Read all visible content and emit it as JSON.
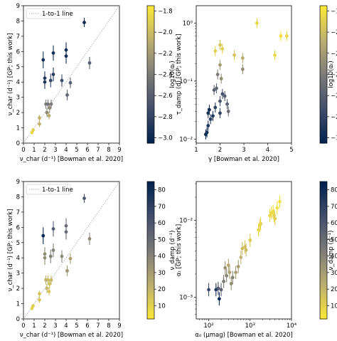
{
  "chart_data": [
    {
      "type": "scatter",
      "xlabel": "ν_char (d⁻¹) [Bowman et al. 2020]",
      "ylabel": "ν_char (d⁻¹) [GP; this work]",
      "xlim": [
        0,
        9
      ],
      "ylim": [
        0,
        9
      ],
      "xticks": [
        "0",
        "1",
        "2",
        "3",
        "4",
        "5",
        "6",
        "7",
        "8",
        "9"
      ],
      "yticks": [
        "0",
        "1",
        "2",
        "3",
        "4",
        "5",
        "6",
        "7",
        "8",
        "9"
      ],
      "legend": [
        "1-to-1 line"
      ],
      "legend_position": "top-left",
      "colorbar": {
        "label": "log10(αₜ)",
        "ticks": [
          "−1.8",
          "−2.0",
          "−2.2",
          "−2.4",
          "−2.6",
          "−2.8",
          "−3.0"
        ],
        "tick_values": [
          -1.8,
          -2.0,
          -2.2,
          -2.4,
          -2.6,
          -2.8,
          -3.0
        ],
        "range": [
          -3.05,
          -1.75
        ],
        "colormap": "cividis"
      },
      "points": [
        {
          "x": 0.8,
          "y": 0.7,
          "yerr": 0.15,
          "c": -1.85
        },
        {
          "x": 0.9,
          "y": 0.85,
          "yerr": 0.15,
          "c": -1.88
        },
        {
          "x": 1.5,
          "y": 1.25,
          "yerr": 0.2,
          "c": -2.05
        },
        {
          "x": 1.5,
          "y": 1.65,
          "yerr": 0.2,
          "c": -2.05
        },
        {
          "x": 1.85,
          "y": 5.45,
          "yerr": 0.55,
          "c": -2.95
        },
        {
          "x": 2.0,
          "y": 4.25,
          "yerr": 0.45,
          "c": -2.85
        },
        {
          "x": 2.0,
          "y": 4.0,
          "yerr": 0.45,
          "c": -2.9
        },
        {
          "x": 2.1,
          "y": 2.55,
          "yerr": 0.3,
          "c": -2.4
        },
        {
          "x": 2.2,
          "y": 2.0,
          "yerr": 0.3,
          "c": -2.3
        },
        {
          "x": 2.3,
          "y": 2.55,
          "yerr": 0.3,
          "c": -2.45
        },
        {
          "x": 2.4,
          "y": 1.8,
          "yerr": 0.25,
          "c": -2.1
        },
        {
          "x": 2.45,
          "y": 2.3,
          "yerr": 0.3,
          "c": -2.3
        },
        {
          "x": 2.55,
          "y": 4.1,
          "yerr": 0.45,
          "c": -2.8
        },
        {
          "x": 2.6,
          "y": 2.55,
          "yerr": 0.3,
          "c": -2.4
        },
        {
          "x": 2.8,
          "y": 5.9,
          "yerr": 0.5,
          "c": -2.95
        },
        {
          "x": 2.8,
          "y": 4.5,
          "yerr": 0.45,
          "c": -2.85
        },
        {
          "x": 3.6,
          "y": 4.1,
          "yerr": 0.4,
          "c": -2.75
        },
        {
          "x": 4.0,
          "y": 5.7,
          "yerr": 0.5,
          "c": -2.95
        },
        {
          "x": 4.0,
          "y": 6.1,
          "yerr": 0.5,
          "c": -2.95
        },
        {
          "x": 4.1,
          "y": 3.15,
          "yerr": 0.35,
          "c": -2.55
        },
        {
          "x": 4.4,
          "y": 3.95,
          "yerr": 0.35,
          "c": -2.6
        },
        {
          "x": 5.7,
          "y": 7.9,
          "yerr": 0.3,
          "c": -3.0
        },
        {
          "x": 6.2,
          "y": 5.25,
          "yerr": 0.4,
          "c": -2.6
        }
      ]
    },
    {
      "type": "scatter",
      "xlabel": "γ [Bowman et al. 2020]",
      "ylabel": "τ_damp (d) [GP; this work]",
      "xlim": [
        1,
        5
      ],
      "ylim": [
        0.0085,
        2.0
      ],
      "yscale": "log",
      "xticks": [
        "1",
        "2",
        "3",
        "4",
        "5"
      ],
      "yticks": [
        "10⁻²",
        "10⁻¹",
        "10⁰"
      ],
      "colorbar": {
        "label": "log10(αₜ)",
        "ticks": [
          "−1.8",
          "−2.0",
          "−2.2",
          "−2.4",
          "−2.6",
          "−2.8",
          "−3.0"
        ],
        "tick_values": [
          -1.8,
          -2.0,
          -2.2,
          -2.4,
          -2.6,
          -2.8,
          -3.0
        ],
        "range": [
          -3.05,
          -1.75
        ],
        "colormap": "cividis"
      },
      "points": [
        {
          "x": 1.4,
          "y": 0.012,
          "c": -3.0
        },
        {
          "x": 1.45,
          "y": 0.013,
          "c": -2.95
        },
        {
          "x": 1.5,
          "y": 0.017,
          "c": -2.9
        },
        {
          "x": 1.5,
          "y": 0.028,
          "c": -2.9
        },
        {
          "x": 1.55,
          "y": 0.032,
          "c": -2.95
        },
        {
          "x": 1.6,
          "y": 0.022,
          "c": -2.85
        },
        {
          "x": 1.7,
          "y": 0.025,
          "c": -2.9
        },
        {
          "x": 1.8,
          "y": 0.035,
          "c": -2.8
        },
        {
          "x": 1.75,
          "y": 0.07,
          "c": -2.6
        },
        {
          "x": 1.85,
          "y": 0.075,
          "c": -2.55
        },
        {
          "x": 2.0,
          "y": 0.045,
          "c": -2.7
        },
        {
          "x": 2.0,
          "y": 0.028,
          "c": -2.8
        },
        {
          "x": 2.1,
          "y": 0.06,
          "c": -2.7
        },
        {
          "x": 2.2,
          "y": 0.055,
          "c": -2.6
        },
        {
          "x": 2.3,
          "y": 0.04,
          "c": -2.6
        },
        {
          "x": 2.35,
          "y": 0.03,
          "c": -2.5
        },
        {
          "x": 1.9,
          "y": 0.13,
          "c": -2.4
        },
        {
          "x": 2.05,
          "y": 0.11,
          "c": -2.3
        },
        {
          "x": 2.0,
          "y": 0.19,
          "c": -2.2
        },
        {
          "x": 1.8,
          "y": 0.33,
          "c": -1.9
        },
        {
          "x": 2.0,
          "y": 0.42,
          "c": -1.95
        },
        {
          "x": 2.1,
          "y": 0.36,
          "c": -1.9
        },
        {
          "x": 2.6,
          "y": 0.28,
          "c": -1.95
        },
        {
          "x": 2.95,
          "y": 0.25,
          "c": -2.1
        },
        {
          "x": 2.95,
          "y": 0.16,
          "c": -2.3
        },
        {
          "x": 3.55,
          "y": 1.0,
          "c": -1.85
        },
        {
          "x": 4.3,
          "y": 0.28,
          "c": -1.85
        },
        {
          "x": 4.55,
          "y": 0.6,
          "c": -1.8
        },
        {
          "x": 4.8,
          "y": 0.6,
          "c": -1.85
        }
      ]
    },
    {
      "type": "scatter",
      "xlabel": "ν_char (d⁻¹) [Bowman et al. 2020]",
      "ylabel": "ν_char (d⁻¹) [GP; this work]",
      "xlim": [
        0,
        9
      ],
      "ylim": [
        0,
        9
      ],
      "xticks": [
        "0",
        "1",
        "2",
        "3",
        "4",
        "5",
        "6",
        "7",
        "8",
        "9"
      ],
      "yticks": [
        "0",
        "1",
        "2",
        "3",
        "4",
        "5",
        "6",
        "7",
        "8",
        "9"
      ],
      "legend": [
        "1-to-1 line"
      ],
      "legend_position": "top-left",
      "colorbar": {
        "label": "ν_damp (d⁻¹)",
        "ticks": [
          "10",
          "20",
          "30",
          "40",
          "50",
          "60",
          "70",
          "80"
        ],
        "tick_values": [
          10,
          20,
          30,
          40,
          50,
          60,
          70,
          80
        ],
        "range": [
          2,
          85
        ],
        "colormap": "cividis_r"
      },
      "points": [
        {
          "x": 0.8,
          "y": 0.7,
          "yerr": 0.15,
          "c": 10
        },
        {
          "x": 0.9,
          "y": 0.85,
          "yerr": 0.15,
          "c": 12
        },
        {
          "x": 1.5,
          "y": 1.25,
          "yerr": 0.2,
          "c": 15
        },
        {
          "x": 1.5,
          "y": 1.65,
          "yerr": 0.2,
          "c": 15
        },
        {
          "x": 1.85,
          "y": 5.45,
          "yerr": 0.55,
          "c": 82
        },
        {
          "x": 2.0,
          "y": 4.25,
          "yerr": 0.45,
          "c": 38
        },
        {
          "x": 2.0,
          "y": 4.0,
          "yerr": 0.45,
          "c": 36
        },
        {
          "x": 2.1,
          "y": 2.55,
          "yerr": 0.3,
          "c": 22
        },
        {
          "x": 2.2,
          "y": 2.0,
          "yerr": 0.3,
          "c": 20
        },
        {
          "x": 2.3,
          "y": 2.55,
          "yerr": 0.3,
          "c": 18
        },
        {
          "x": 2.4,
          "y": 1.8,
          "yerr": 0.25,
          "c": 14
        },
        {
          "x": 2.45,
          "y": 2.3,
          "yerr": 0.3,
          "c": 16
        },
        {
          "x": 2.55,
          "y": 4.1,
          "yerr": 0.45,
          "c": 42
        },
        {
          "x": 2.6,
          "y": 2.55,
          "yerr": 0.3,
          "c": 20
        },
        {
          "x": 2.8,
          "y": 5.9,
          "yerr": 0.5,
          "c": 58
        },
        {
          "x": 2.8,
          "y": 4.5,
          "yerr": 0.45,
          "c": 40
        },
        {
          "x": 3.6,
          "y": 4.1,
          "yerr": 0.4,
          "c": 38
        },
        {
          "x": 4.0,
          "y": 5.7,
          "yerr": 0.5,
          "c": 52
        },
        {
          "x": 4.0,
          "y": 6.1,
          "yerr": 0.5,
          "c": 50
        },
        {
          "x": 4.1,
          "y": 3.15,
          "yerr": 0.35,
          "c": 32
        },
        {
          "x": 4.4,
          "y": 3.95,
          "yerr": 0.35,
          "c": 28
        },
        {
          "x": 5.7,
          "y": 7.9,
          "yerr": 0.3,
          "c": 60
        },
        {
          "x": 6.2,
          "y": 5.25,
          "yerr": 0.4,
          "c": 38
        }
      ]
    },
    {
      "type": "scatter",
      "xlabel": "α₀ (µmag) [Bowman et al. 2020]",
      "ylabel": "αₜ [GP; this work]",
      "xlim": [
        50,
        10000
      ],
      "ylim": [
        0.00052,
        0.032
      ],
      "xscale": "log",
      "yscale": "log",
      "xticks": [
        "10²",
        "10³",
        "10⁴"
      ],
      "yticks": [
        "10⁻³",
        "10⁻²"
      ],
      "colorbar": {
        "label": "ν_damp (d⁻¹)",
        "ticks": [
          "10",
          "20",
          "30",
          "40",
          "50",
          "60",
          "70",
          "80"
        ],
        "tick_values": [
          10,
          20,
          30,
          40,
          50,
          60,
          70,
          80
        ],
        "range": [
          2,
          85
        ],
        "colormap": "cividis_r"
      },
      "points": [
        {
          "x": 100,
          "y": 0.00125,
          "c": 65
        },
        {
          "x": 150,
          "y": 0.00125,
          "c": 75
        },
        {
          "x": 170,
          "y": 0.0013,
          "c": 60
        },
        {
          "x": 180,
          "y": 0.00095,
          "c": 82
        },
        {
          "x": 200,
          "y": 0.00125,
          "c": 55
        },
        {
          "x": 230,
          "y": 0.0016,
          "c": 45
        },
        {
          "x": 250,
          "y": 0.0024,
          "c": 35
        },
        {
          "x": 270,
          "y": 0.0019,
          "c": 40
        },
        {
          "x": 300,
          "y": 0.0026,
          "c": 25
        },
        {
          "x": 320,
          "y": 0.0021,
          "c": 28
        },
        {
          "x": 350,
          "y": 0.0015,
          "c": 35
        },
        {
          "x": 380,
          "y": 0.0018,
          "c": 40
        },
        {
          "x": 450,
          "y": 0.0021,
          "c": 30
        },
        {
          "x": 520,
          "y": 0.0025,
          "c": 30
        },
        {
          "x": 600,
          "y": 0.0033,
          "c": 22
        },
        {
          "x": 650,
          "y": 0.0043,
          "c": 18
        },
        {
          "x": 750,
          "y": 0.0045,
          "c": 15
        },
        {
          "x": 800,
          "y": 0.0041,
          "c": 18
        },
        {
          "x": 1000,
          "y": 0.0055,
          "c": 12
        },
        {
          "x": 1600,
          "y": 0.0075,
          "c": 8
        },
        {
          "x": 1700,
          "y": 0.0085,
          "c": 8
        },
        {
          "x": 1800,
          "y": 0.009,
          "c": 10
        },
        {
          "x": 3000,
          "y": 0.0115,
          "c": 8
        },
        {
          "x": 3300,
          "y": 0.0125,
          "c": 8
        },
        {
          "x": 3600,
          "y": 0.013,
          "c": 6
        },
        {
          "x": 3800,
          "y": 0.0115,
          "c": 10
        },
        {
          "x": 4000,
          "y": 0.0105,
          "c": 12
        },
        {
          "x": 4500,
          "y": 0.0145,
          "c": 6
        },
        {
          "x": 5200,
          "y": 0.0175,
          "c": 5
        }
      ]
    }
  ]
}
